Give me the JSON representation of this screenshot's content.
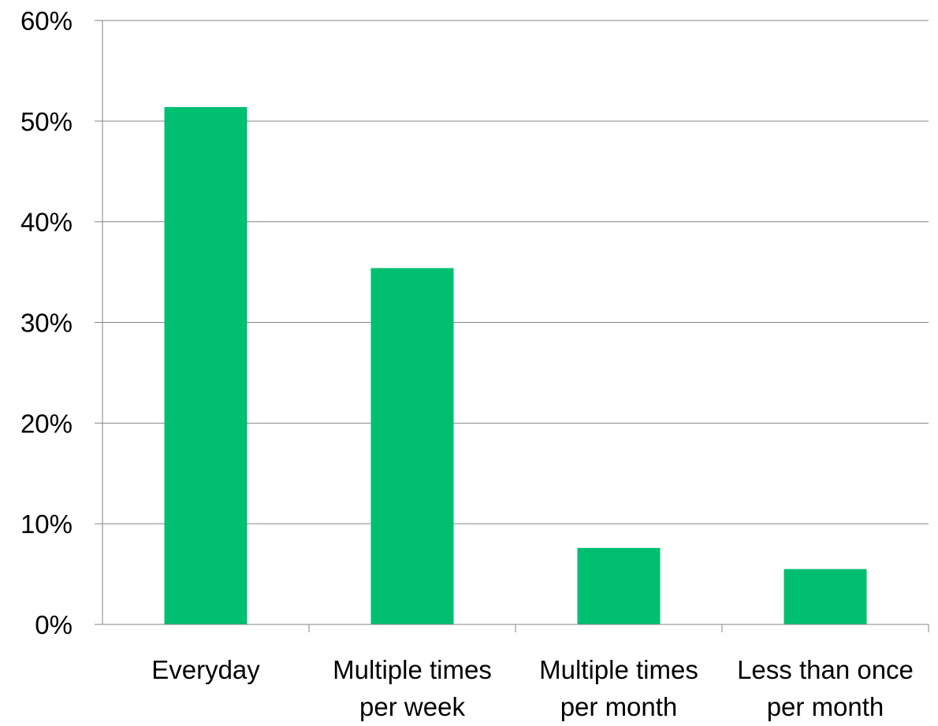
{
  "chart_data": {
    "type": "bar",
    "title": "",
    "xlabel": "",
    "ylabel": "",
    "categories": [
      [
        "Everyday"
      ],
      [
        "Multiple times",
        "per week"
      ],
      [
        "Multiple times",
        "per month"
      ],
      [
        "Less than once",
        "per month"
      ]
    ],
    "values": [
      51.4,
      35.4,
      7.6,
      5.5
    ],
    "ylim": [
      0,
      60
    ],
    "ytick_values": [
      0,
      10,
      20,
      30,
      40,
      50,
      60
    ],
    "ytick_labels": [
      "0%",
      "10%",
      "20%",
      "30%",
      "40%",
      "50%",
      "60%"
    ],
    "grid": true,
    "legend": "none",
    "bar_color": "#00BF71",
    "grid_color": "#868686",
    "axis_color": "#868686"
  }
}
